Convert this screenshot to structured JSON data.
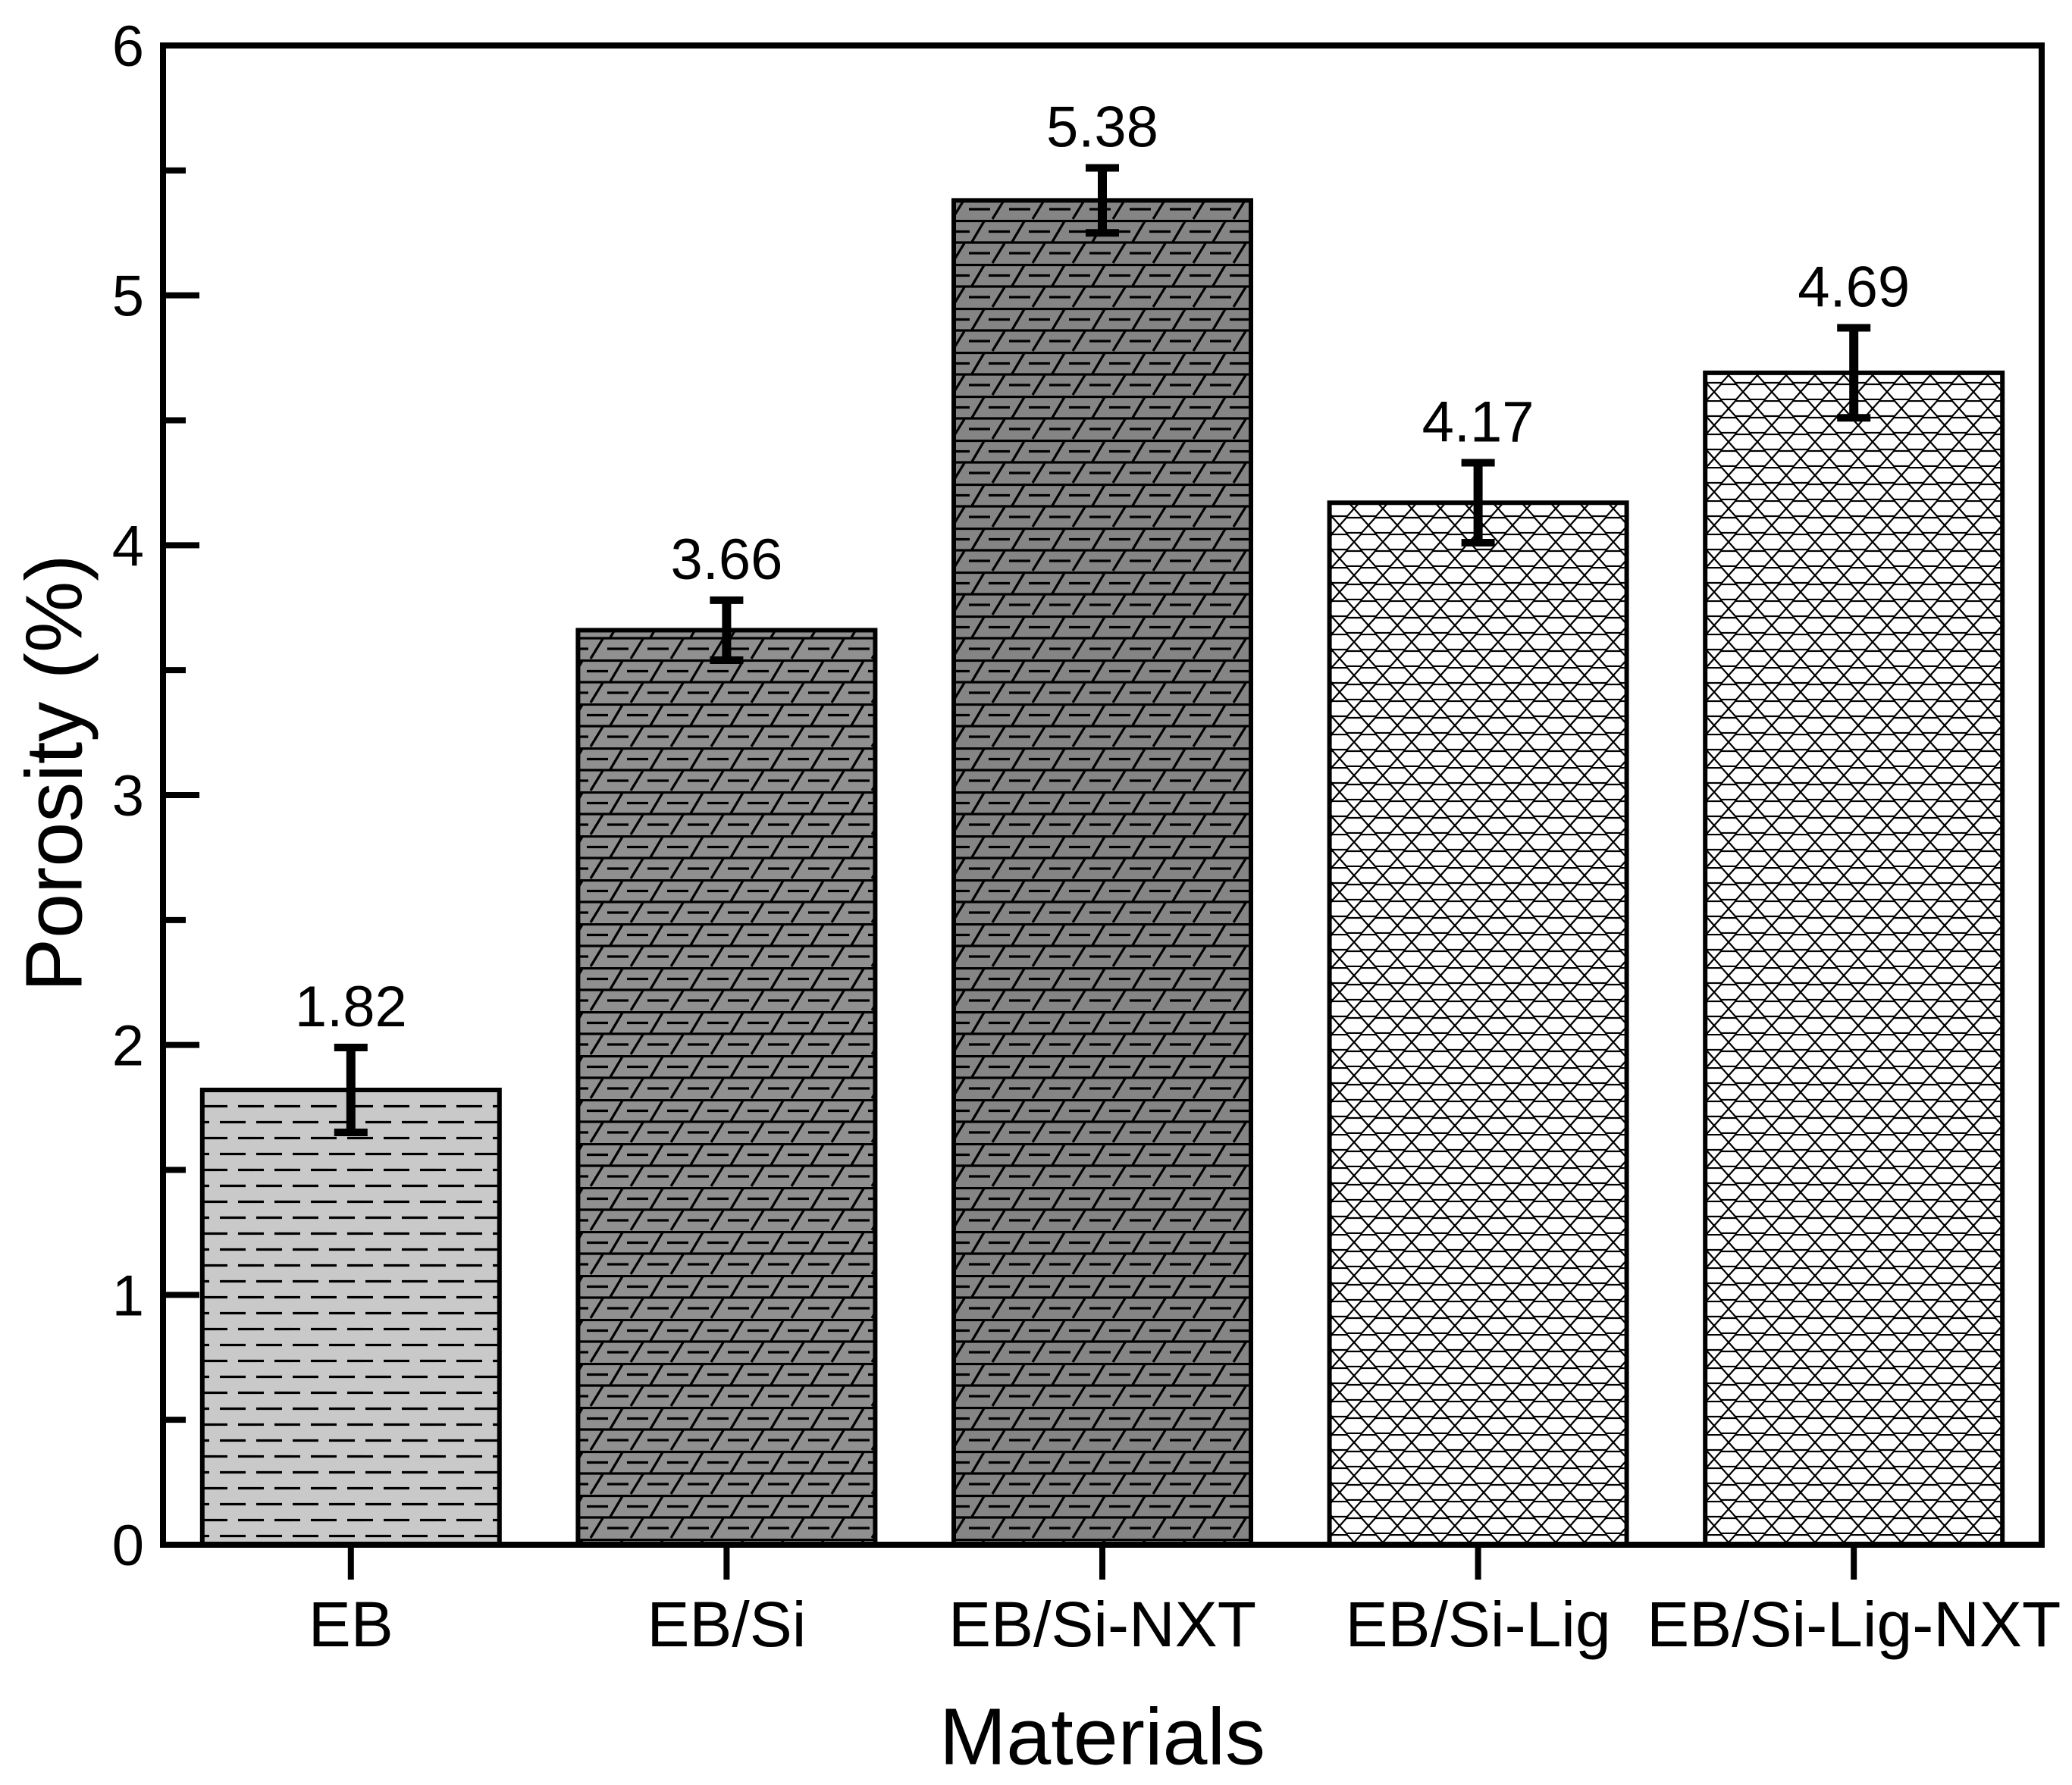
{
  "figure": {
    "background": "#ffffff",
    "axis_color": "#000000"
  },
  "chart_data": {
    "type": "bar",
    "title": "",
    "xlabel": "Materials",
    "ylabel": "Porosity (%)",
    "categories": [
      "EB",
      "EB/Si",
      "EB/Si-NXT",
      "EB/Si-Lig",
      "EB/Si-Lig-NXT"
    ],
    "values": [
      1.82,
      3.66,
      5.38,
      4.17,
      4.69
    ],
    "value_labels": [
      "1.82",
      "3.66",
      "5.38",
      "4.17",
      "4.69"
    ],
    "errors": [
      0.17,
      0.12,
      0.13,
      0.16,
      0.18
    ],
    "ylim": [
      0,
      6
    ],
    "ytick_labels": [
      "0",
      "1",
      "2",
      "3",
      "4",
      "5",
      "6"
    ],
    "ytick_major_step": 1,
    "ytick_minor_step": 0.5,
    "grid": false,
    "legend": null,
    "bar_outline_color": "#000000",
    "error_bar_color": "#000000",
    "bar_styles": [
      {
        "fill": "#c9c9c9",
        "pattern": "horizontal-dash"
      },
      {
        "fill": "#909090",
        "pattern": "brick-slash"
      },
      {
        "fill": "#858585",
        "pattern": "brick-slash"
      },
      {
        "fill": "#ffffff",
        "pattern": "honeycomb"
      },
      {
        "fill": "#ffffff",
        "pattern": "honeycomb"
      }
    ]
  }
}
